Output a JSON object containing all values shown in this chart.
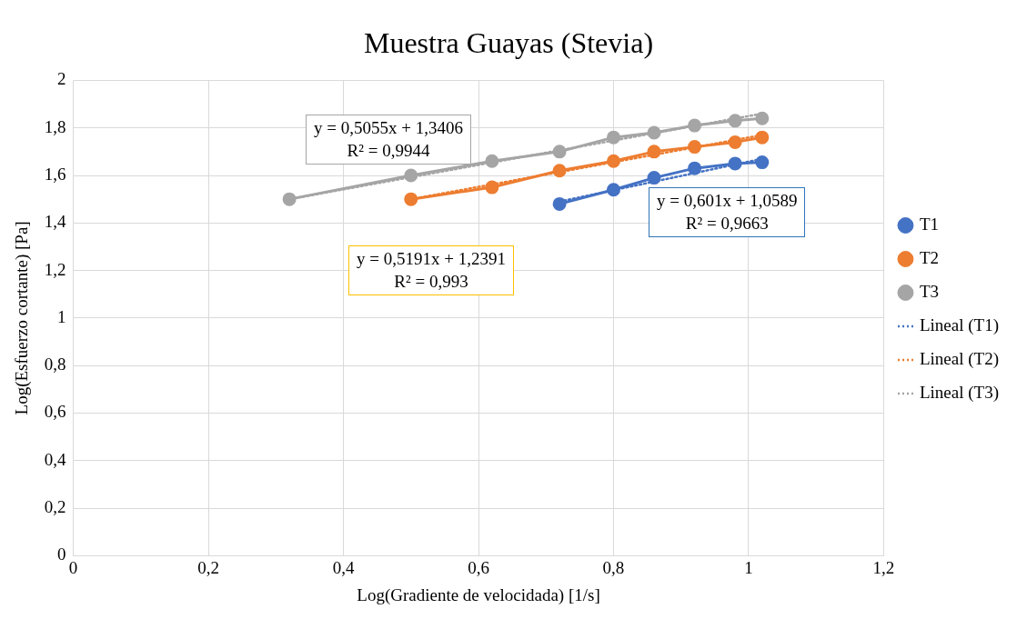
{
  "chart_data": {
    "type": "line",
    "title": "Muestra Guayas (Stevia)",
    "xlabel": "Log(Gradiente de velocidada) [1/s]",
    "ylabel": "Log(Esfuerzo cortante) [Pa]",
    "xlim": [
      0,
      1.2
    ],
    "xticks": [
      0,
      {
        "value": 0.2,
        "label": "0,2"
      },
      {
        "value": 0.4,
        "label": "0,4"
      },
      {
        "value": 0.6,
        "label": "0,6"
      },
      {
        "value": 0.8,
        "label": "0,8"
      },
      1,
      {
        "value": 1.2,
        "label": "1,2"
      }
    ],
    "ylim": [
      0,
      2
    ],
    "yticks": [
      0,
      {
        "value": 0.2,
        "label": "0,2"
      },
      {
        "value": 0.4,
        "label": "0,4"
      },
      {
        "value": 0.6,
        "label": "0,6"
      },
      {
        "value": 0.8,
        "label": "0,8"
      },
      1,
      {
        "value": 1.2,
        "label": "1,2"
      },
      {
        "value": 1.4,
        "label": "1,4"
      },
      {
        "value": 1.6,
        "label": "1,6"
      },
      {
        "value": 1.8,
        "label": "1,8"
      },
      2
    ],
    "grid": true,
    "legend": "right",
    "marker": "circle",
    "line_style": "solid",
    "series": [
      {
        "name": "T1",
        "color": "#4472c4",
        "x": [
          0.72,
          0.8,
          0.86,
          0.92,
          0.98,
          1.02
        ],
        "values": [
          1.48,
          1.54,
          1.59,
          1.63,
          1.65,
          1.655
        ]
      },
      {
        "name": "T2",
        "color": "#ed7d31",
        "x": [
          0.5,
          0.62,
          0.72,
          0.8,
          0.86,
          0.92,
          0.98,
          1.02
        ],
        "values": [
          1.5,
          1.55,
          1.62,
          1.66,
          1.7,
          1.72,
          1.74,
          1.76
        ]
      },
      {
        "name": "T3",
        "color": "#a5a5a5",
        "x": [
          0.32,
          0.5,
          0.62,
          0.72,
          0.8,
          0.86,
          0.92,
          0.98,
          1.02
        ],
        "values": [
          1.5,
          1.6,
          1.66,
          1.7,
          1.76,
          1.78,
          1.81,
          1.83,
          1.84
        ]
      },
      {
        "name": "Lineal (T1)",
        "color": "#4472c4",
        "line_style": "dotted",
        "marker": "none",
        "x": [
          0.72,
          1.02
        ],
        "values": [
          1.49,
          1.67
        ]
      },
      {
        "name": "Lineal (T2)",
        "color": "#ed7d31",
        "line_style": "dotted",
        "marker": "none",
        "x": [
          0.5,
          1.02
        ],
        "values": [
          1.5,
          1.77
        ]
      },
      {
        "name": "Lineal (T3)",
        "color": "#a5a5a5",
        "line_style": "dotted",
        "marker": "none",
        "x": [
          0.32,
          1.02
        ],
        "values": [
          1.5,
          1.86
        ]
      }
    ],
    "annotations": [
      "y = 0,5055x + 1,3406\nR² = 0,9944",
      "y = 0,601x + 1,0589\nR² = 0,9663",
      "y = 0,5191x + 1,2391\nR² = 0,993"
    ]
  }
}
